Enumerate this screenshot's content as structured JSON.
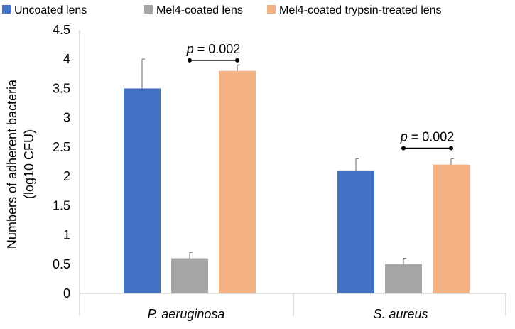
{
  "chart_data": {
    "type": "bar",
    "title": "",
    "xlabel": "",
    "ylabel_line1": "Numbers of adherent bacteria",
    "ylabel_line2": "(log10 CFU)",
    "ylim": [
      0,
      4.5
    ],
    "yticks": [
      0,
      0.5,
      1,
      1.5,
      2,
      2.5,
      3,
      3.5,
      4,
      4.5
    ],
    "ytick_labels": [
      "0",
      "0.5",
      "1",
      "1.5",
      "2",
      "2.5",
      "3",
      "3.5",
      "4",
      "4.5"
    ],
    "grid": false,
    "legend_position": "top",
    "categories": [
      "P. aeruginosa",
      "S. aureus"
    ],
    "series": [
      {
        "name": "Uncoated lens",
        "color": "#4472C4",
        "values": [
          3.5,
          2.1
        ],
        "errors": [
          0.5,
          0.2
        ]
      },
      {
        "name": "Mel4-coated lens",
        "color": "#A5A5A5",
        "values": [
          0.6,
          0.5
        ],
        "errors": [
          0.1,
          0.1
        ]
      },
      {
        "name": "Mel4-coated trypsin-treated lens",
        "color": "#F4B183",
        "values": [
          3.8,
          2.2
        ],
        "errors": [
          0.1,
          0.1
        ]
      }
    ],
    "annotations": [
      {
        "category_index": 0,
        "p_label": "p",
        "p_value": "= 0.002",
        "y": 3.98
      },
      {
        "category_index": 1,
        "p_label": "p",
        "p_value": "= 0.002",
        "y": 2.48
      }
    ]
  }
}
